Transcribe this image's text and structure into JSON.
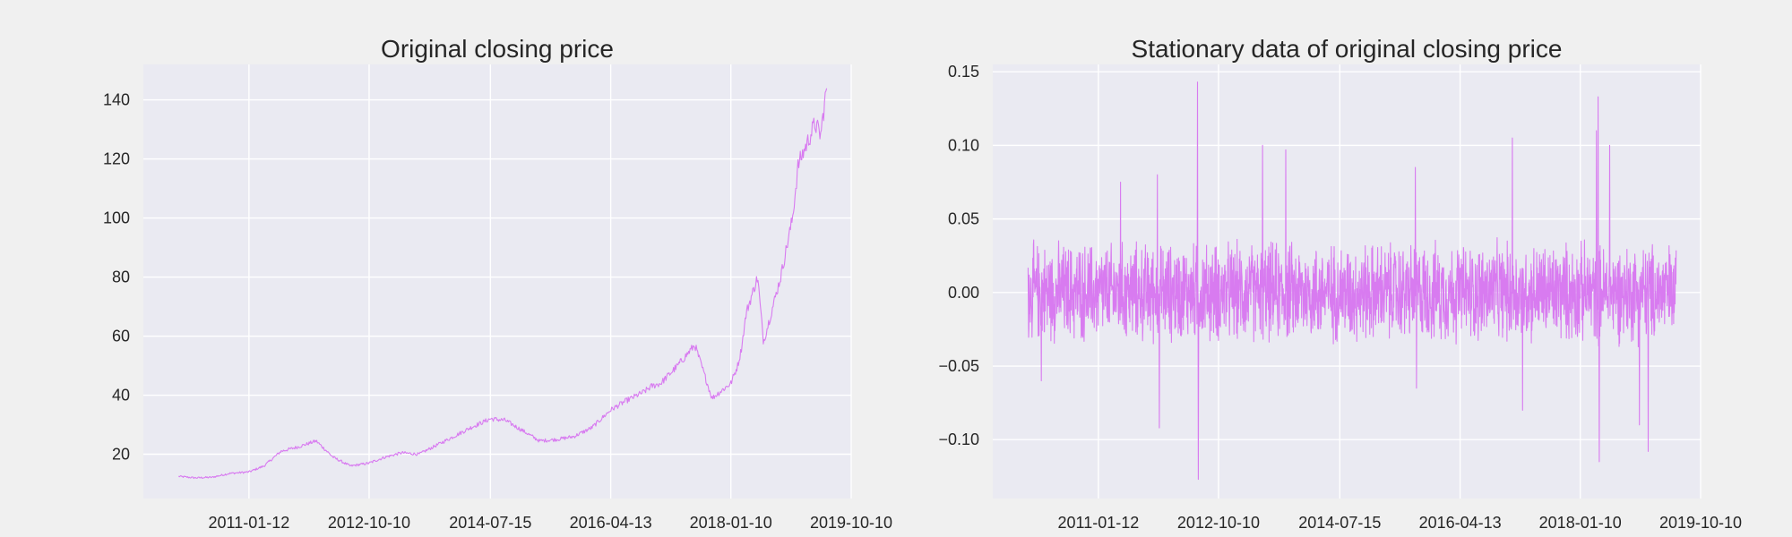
{
  "chart_data": [
    {
      "type": "line",
      "title": "Original closing price",
      "xlabel": "",
      "ylabel": "",
      "xlim": [
        "2009-07-01",
        "2019-10-10"
      ],
      "ylim": [
        5,
        152
      ],
      "x_ticks": [
        "2011-01-12",
        "2012-10-10",
        "2014-07-15",
        "2016-04-13",
        "2018-01-10",
        "2019-10-10"
      ],
      "y_ticks": [
        20,
        40,
        60,
        80,
        100,
        120,
        140
      ],
      "y_tick_labels": [
        "20",
        "40",
        "60",
        "80",
        "100",
        "120",
        "140"
      ],
      "grid": true,
      "series": [
        {
          "name": "",
          "color": "#d87bf0",
          "x": [
            "2010-01-04",
            "2010-04-01",
            "2010-07-01",
            "2010-10-01",
            "2011-01-12",
            "2011-04-01",
            "2011-07-01",
            "2011-10-01",
            "2012-01-03",
            "2012-04-02",
            "2012-07-02",
            "2012-10-10",
            "2013-01-02",
            "2013-04-01",
            "2013-07-01",
            "2013-10-01",
            "2014-01-02",
            "2014-04-01",
            "2014-07-15",
            "2014-10-01",
            "2015-01-02",
            "2015-04-01",
            "2015-07-01",
            "2015-10-01",
            "2016-01-04",
            "2016-04-13",
            "2016-07-01",
            "2016-10-03",
            "2016-11-15",
            "2017-01-03",
            "2017-04-03",
            "2017-07-03",
            "2017-10-02",
            "2018-01-10",
            "2018-02-15",
            "2018-03-05",
            "2018-04-02",
            "2018-06-01",
            "2018-07-02",
            "2018-10-01",
            "2018-12-03",
            "2019-01-02",
            "2019-03-01",
            "2019-04-01",
            "2019-05-01",
            "2019-06-03"
          ],
          "values": [
            12.5,
            12.0,
            12.2,
            13.5,
            14.0,
            16.0,
            21.0,
            22.5,
            24.5,
            19.0,
            16.0,
            17.0,
            19.0,
            20.5,
            20.0,
            23.0,
            26.0,
            29.0,
            32.0,
            31.5,
            28.0,
            24.5,
            25.0,
            26.0,
            29.0,
            35.0,
            38.0,
            41.0,
            43.0,
            44.0,
            50.0,
            57.0,
            39.0,
            44.0,
            50.0,
            55.0,
            68.0,
            80.0,
            58.0,
            80.0,
            100.0,
            118.0,
            127.0,
            132.0,
            128.0,
            145.0
          ]
        }
      ]
    },
    {
      "type": "line",
      "title": "Stationary data of original closing price",
      "xlabel": "",
      "ylabel": "",
      "xlim": [
        "2009-07-01",
        "2019-10-10"
      ],
      "ylim": [
        -0.14,
        0.155
      ],
      "x_ticks": [
        "2011-01-12",
        "2012-10-10",
        "2014-07-15",
        "2016-04-13",
        "2018-01-10",
        "2019-10-10"
      ],
      "y_ticks": [
        -0.1,
        -0.05,
        0.0,
        0.05,
        0.1,
        0.15
      ],
      "y_tick_labels": [
        "−0.10",
        "−0.05",
        "0.00",
        "0.05",
        "0.10",
        "0.15"
      ],
      "grid": true,
      "series": [
        {
          "name": "",
          "color": "#d87bf0",
          "x_start": "2010-01-04",
          "x_end": "2019-06-03",
          "typical_amplitude": 0.03,
          "spikes": [
            {
              "x": "2010-03-15",
              "y": -0.06
            },
            {
              "x": "2011-05-10",
              "y": 0.075
            },
            {
              "x": "2011-11-20",
              "y": 0.08
            },
            {
              "x": "2011-12-01",
              "y": -0.092
            },
            {
              "x": "2012-06-20",
              "y": 0.143
            },
            {
              "x": "2012-06-25",
              "y": -0.127
            },
            {
              "x": "2013-06-01",
              "y": 0.1
            },
            {
              "x": "2013-10-01",
              "y": 0.097
            },
            {
              "x": "2015-08-20",
              "y": 0.085
            },
            {
              "x": "2015-08-25",
              "y": -0.065
            },
            {
              "x": "2017-01-15",
              "y": 0.105
            },
            {
              "x": "2017-03-10",
              "y": -0.08
            },
            {
              "x": "2018-04-15",
              "y": 0.133
            },
            {
              "x": "2018-04-20",
              "y": -0.115
            },
            {
              "x": "2018-04-05",
              "y": 0.11
            },
            {
              "x": "2018-06-15",
              "y": 0.1
            },
            {
              "x": "2018-11-20",
              "y": -0.09
            },
            {
              "x": "2019-01-05",
              "y": -0.108
            }
          ]
        }
      ]
    }
  ]
}
